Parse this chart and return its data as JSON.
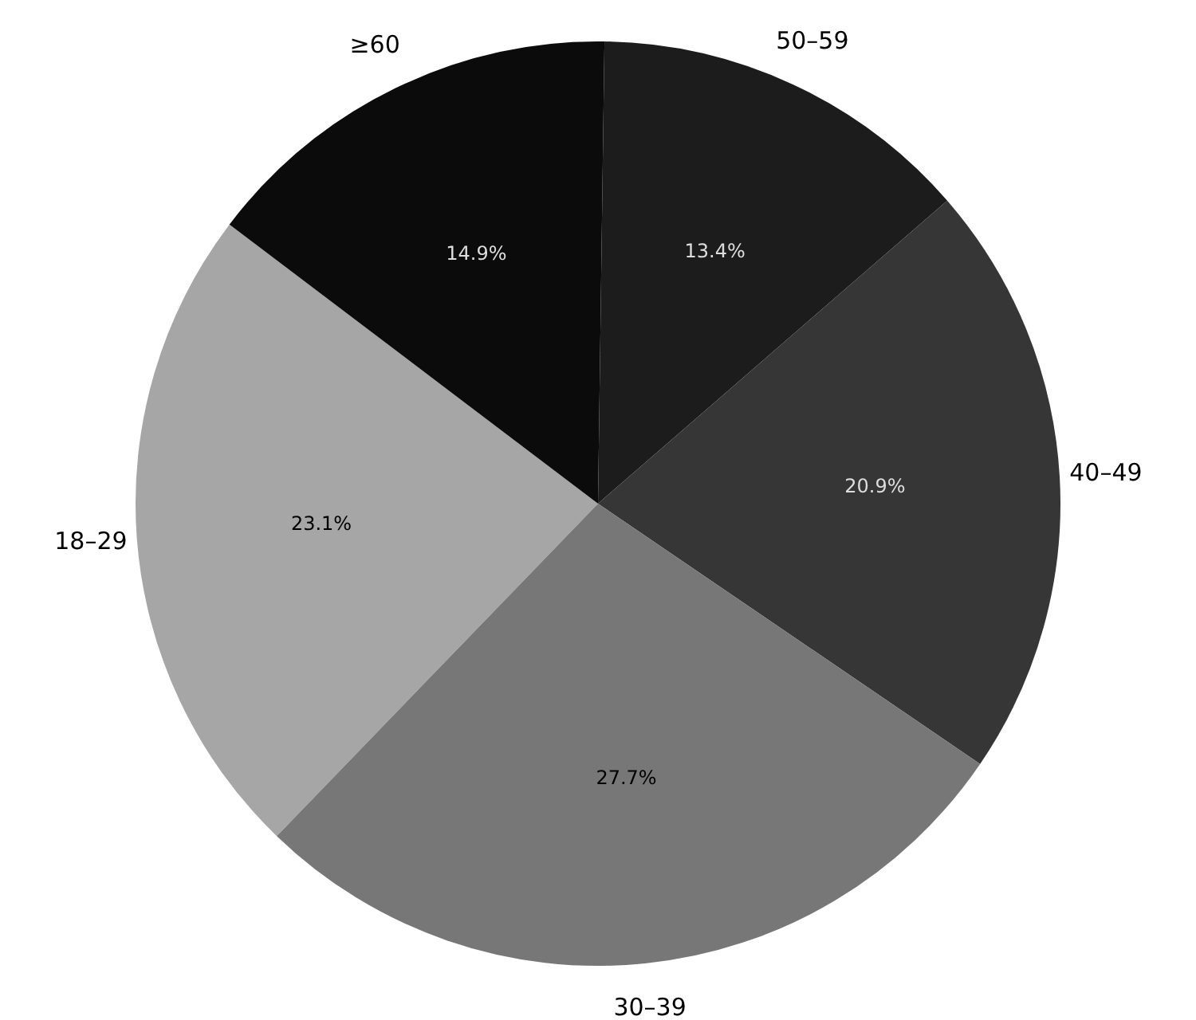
{
  "chart_data": {
    "type": "pie",
    "categories": [
      "18–29",
      "≥60",
      "50–59",
      "40–49",
      "30–39"
    ],
    "values": [
      23.1,
      14.9,
      13.4,
      20.9,
      27.7
    ],
    "value_labels": [
      "23.1%",
      "14.9%",
      "13.4%",
      "20.9%",
      "27.7%"
    ],
    "colors": [
      "#a6a6a6",
      "#0b0b0b",
      "#1c1c1c",
      "#363636",
      "#777777"
    ],
    "legend": false
  }
}
